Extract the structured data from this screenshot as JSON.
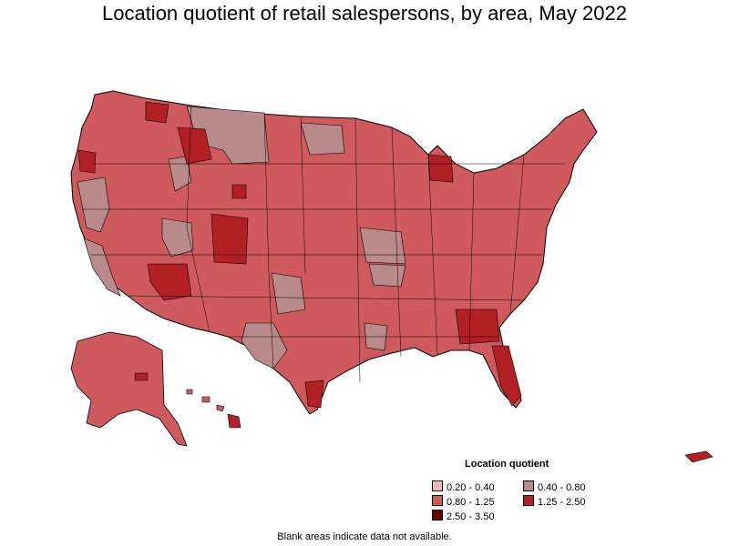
{
  "title": "Location quotient of retail salespersons, by area, May 2022",
  "legend": {
    "title": "Location quotient",
    "items": [
      {
        "label": "0.20 - 0.40",
        "color": "#efb8b8"
      },
      {
        "label": "0.40 - 0.80",
        "color": "#b88a8a"
      },
      {
        "label": "0.80 - 1.25",
        "color": "#cf5a5e"
      },
      {
        "label": "1.25 - 2.50",
        "color": "#b22026"
      },
      {
        "label": "2.50 - 3.50",
        "color": "#6b0000"
      }
    ]
  },
  "footnote": "Blank areas indicate data not available.",
  "map": {
    "region": "United States",
    "base_color": "#cf5a5e",
    "border_color": "#000000"
  }
}
